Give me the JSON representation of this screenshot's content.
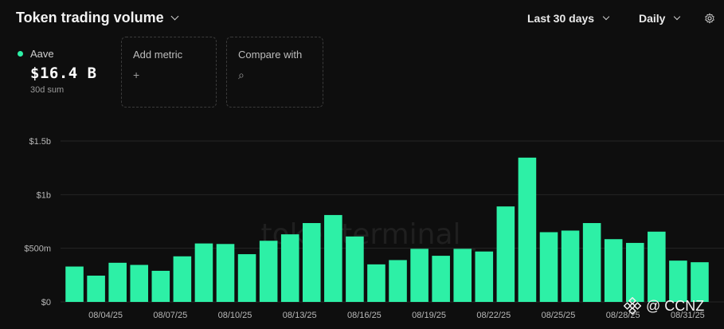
{
  "header": {
    "title": "Token trading volume",
    "range_label": "Last 30 days",
    "interval_label": "Daily"
  },
  "icons": {
    "title_dropdown": "chevron-down-icon",
    "settings": "gear-icon",
    "add": "plus-icon",
    "search": "search-icon"
  },
  "metric": {
    "name": "Aave",
    "value": "$16.4 B",
    "sub": "30d sum",
    "color": "#2df0a6"
  },
  "add_metric": {
    "label": "Add metric",
    "icon": "+"
  },
  "compare": {
    "label": "Compare with",
    "icon": "⌕"
  },
  "overlay": {
    "text": "@ CCNZ"
  },
  "chart_data": {
    "type": "bar",
    "watermark": "tokenterminal_",
    "color": "#2df0a6",
    "ylim": [
      0,
      1500000000
    ],
    "y_ticks": [
      {
        "value": 0,
        "label": "$0"
      },
      {
        "value": 500000000,
        "label": "$500m"
      },
      {
        "value": 1000000000,
        "label": "$1b"
      },
      {
        "value": 1500000000,
        "label": "$1.5b"
      }
    ],
    "x_tick_labels": [
      "08/04/25",
      "08/07/25",
      "08/10/25",
      "08/13/25",
      "08/16/25",
      "08/19/25",
      "08/22/25",
      "08/25/25",
      "08/28/25",
      "08/31/25"
    ],
    "x_tick_bar_index": [
      1,
      4,
      7,
      10,
      13,
      16,
      19,
      22,
      25,
      28
    ],
    "series": [
      {
        "name": "Aave",
        "values": [
          330000000,
          245000000,
          365000000,
          345000000,
          290000000,
          425000000,
          545000000,
          540000000,
          445000000,
          570000000,
          630000000,
          735000000,
          810000000,
          610000000,
          350000000,
          390000000,
          495000000,
          430000000,
          495000000,
          470000000,
          890000000,
          1345000000,
          650000000,
          665000000,
          735000000,
          585000000,
          550000000,
          655000000,
          385000000,
          370000000
        ]
      }
    ]
  }
}
